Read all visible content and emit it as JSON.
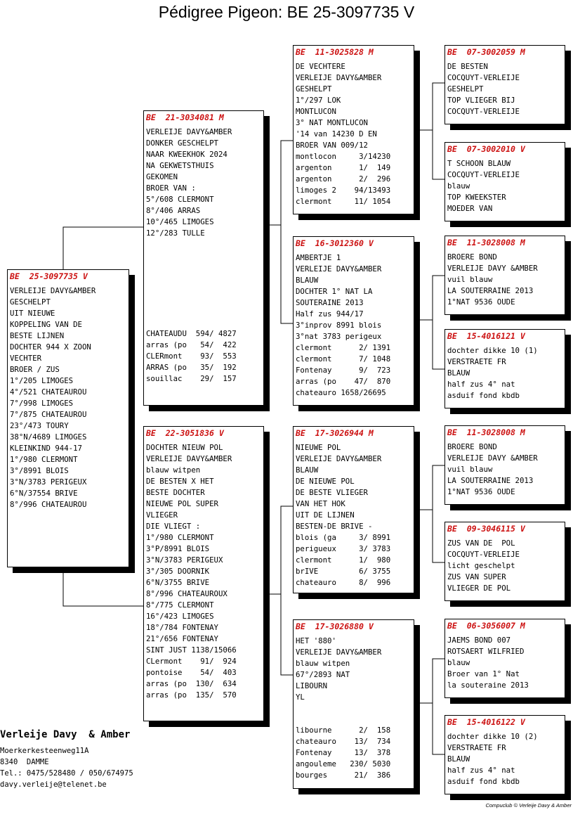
{
  "title": "Pédigree Pigeon: BE  25-3097735 V",
  "cards": {
    "subject": {
      "header": "BE  25-3097735 V",
      "lines": [
        "VERLEIJE DAVY&AMBER",
        "GESCHELPT",
        "UIT NIEUWE",
        "KOPPELING VAN DE",
        "BESTE LIJNEN",
        "DOCHTER 944 X ZOON",
        "VECHTER",
        "BROER / ZUS",
        "1°/205 LIMOGES",
        "4°/521 CHATEAUROU",
        "7°/998 LIMOGES",
        "7°/875 CHATEAUROU",
        "23°/473 TOURY",
        "38°N/4689 LIMOGES",
        "KLEINKIND 944-17",
        "1°/980 CLERMONT",
        "3°/8991 BLOIS",
        "3°N/3783 PERIGEUX",
        "6°N/37554 BRIVE",
        "8°/996 CHATEAUROU"
      ],
      "results": []
    },
    "sire": {
      "header": "BE  21-3034081 M",
      "lines": [
        "VERLEIJE DAVY&AMBER",
        "DONKER GESCHELPT",
        "NAAR KWEEKHOK 2024",
        "NA GEKWETSTHUIS",
        "GEKOMEN",
        "BROER VAN :",
        "5°/608 CLERMONT",
        "8°/406 ARRAS",
        "10°/465 LIMOGES",
        "12°/283 TULLE"
      ],
      "results": [
        "CHATEAUDU  594/ 4827",
        "arras (po   54/  422",
        "CLERmont    93/  553",
        "ARRAS (po   35/  192",
        "souillac    29/  157"
      ]
    },
    "dam": {
      "header": "BE  22-3051836 V",
      "lines": [
        "DOCHTER NIEUW POL",
        "VERLEIJE DAVY&AMBER",
        "blauw witpen",
        "DE BESTEN X HET",
        "BESTE DOCHTER",
        "NIEUWE POL SUPER",
        "VLIEGER",
        "DIE VLIEGT :",
        "1°/980 CLERMONT",
        "3°P/8991 BLOIS",
        "3°N/3783 PERIGEUX",
        "3°/305 DOORNIK",
        "6°N/3755 BRIVE",
        "8°/996 CHATEAUROUX",
        "8°/775 CLERMONT",
        "16°/423 LIMOGES",
        "18°/784 FONTENAY",
        "21°/656 FONTENAY",
        "SINT JUST 1138/15066",
        "CLermont    91/  924",
        "pontoise    54/  403",
        "arras (po  130/  634",
        "arras (po  135/  570"
      ],
      "results": []
    },
    "ss": {
      "header": "BE  11-3025828 M",
      "lines": [
        "DE VECHTERE",
        "VERLEIJE DAVY&AMBER",
        "GESHELPT",
        "1°/297 LOK",
        "MONTLUCON",
        "3° NAT MONTLUCON",
        "'14 van 14230 D EN",
        "BROER VAN 009/12",
        "montlocon     3/14230",
        "argenton      1/  149",
        "argenton      2/  296",
        "limoges 2    94/13493",
        "clermont     11/ 1054"
      ],
      "results": []
    },
    "sd": {
      "header": "BE  16-3012360 V",
      "lines": [
        "AMBERTJE 1",
        "VERLEIJE DAVY&AMBER",
        "BLAUW",
        "DOCHTER 1° NAT LA",
        "SOUTERAINE 2013",
        "Half zus 944/17",
        "3°inprov 8991 blois",
        "3°nat 3783 perigeux",
        "clermont      2/ 1391",
        "clermont      7/ 1048",
        "Fontenay      9/  723",
        "arras (po    47/  870",
        "chateauro 1658/26695"
      ],
      "results": []
    },
    "ds": {
      "header": "BE  17-3026944 M",
      "lines": [
        "NIEUWE POL",
        "VERLEIJE DAVY&AMBER",
        "BLAUW",
        "DE NIEUWE POL",
        "DE BESTE VLIEGER",
        "VAN HET HOK",
        "UIT DE LIJNEN",
        "BESTEN-DE BRIVE -",
        "blois (ga     3/ 8991",
        "perigueux     3/ 3783",
        "clermont      1/  980",
        "brIVE         6/ 3755",
        "chateauro     8/  996"
      ],
      "results": []
    },
    "dd": {
      "header": "BE  17-3026880 V",
      "lines": [
        "HET '880'",
        "VERLEIJE DAVY&AMBER",
        "blauw witpen",
        "67°/2893 NAT",
        "LIBOURN",
        "YL"
      ],
      "results": [
        "libourne      2/  158",
        "chateauro    13/  734",
        "Fontenay     13/  378",
        "angouleme   230/ 5030",
        "bourges      21/  386"
      ]
    },
    "sss": {
      "header": "BE  07-3002059 M",
      "lines": [
        "DE BESTEN",
        "COCQUYT-VERLEIJE",
        "GESHELPT",
        "TOP VLIEGER BIJ",
        "COCQUYT-VERLEIJE"
      ],
      "results": []
    },
    "ssd": {
      "header": "BE  07-3002010 V",
      "lines": [
        "T SCHOON BLAUW",
        "COCQUYT-VERLEIJE",
        "blauw",
        "TOP KWEEKSTER",
        "MOEDER VAN"
      ],
      "results": []
    },
    "sds": {
      "header": "BE  11-3028008 M",
      "lines": [
        "BROERE BOND",
        "VERLEIJE DAVY &AMBER",
        "vuil blauw",
        "LA SOUTERRAINE 2013",
        "1°NAT 9536 OUDE"
      ],
      "results": []
    },
    "sdd": {
      "header": "BE  15-4016121 V",
      "lines": [
        "dochter dikke 10 (1)",
        "VERSTRAETE FR",
        "BLAUW",
        "half zus 4° nat",
        "asduif fond kbdb"
      ],
      "results": []
    },
    "dss": {
      "header": "BE  11-3028008 M",
      "lines": [
        "BROERE BOND",
        "VERLEIJE DAVY &AMBER",
        "vuil blauw",
        "LA SOUTERRAINE 2013",
        "1°NAT 9536 OUDE"
      ],
      "results": []
    },
    "dsd": {
      "header": "BE  09-3046115 V",
      "lines": [
        "ZUS VAN DE  POL",
        "COCQUYT-VERLEIJE",
        "licht geschelpt",
        "ZUS VAN SUPER",
        "VLIEGER DE POL"
      ],
      "results": []
    },
    "dds": {
      "header": "BE  06-3056007 M",
      "lines": [
        "JAEMS BOND 007",
        "ROTSAERT WILFRIED",
        "blauw",
        "Broer van 1° Nat",
        "la souteraine 2013"
      ],
      "results": []
    },
    "ddd": {
      "header": "BE  15-4016122 V",
      "lines": [
        "dochter dikke 10 (2)",
        "VERSTRAETE FR",
        "BLAUW",
        "half zus 4° nat",
        "asduif fond kbdb"
      ],
      "results": []
    }
  },
  "breeder": {
    "name": "Verleije Davy  & Amber",
    "address": "Moerkerkesteenweg11A",
    "city": "8340  DAMME",
    "phone": "Tel.: 0475/528480 / 050/674975",
    "email": "davy.verleije@telenet.be"
  },
  "footer": "Compuclub © Verleije Davy  & Amber"
}
